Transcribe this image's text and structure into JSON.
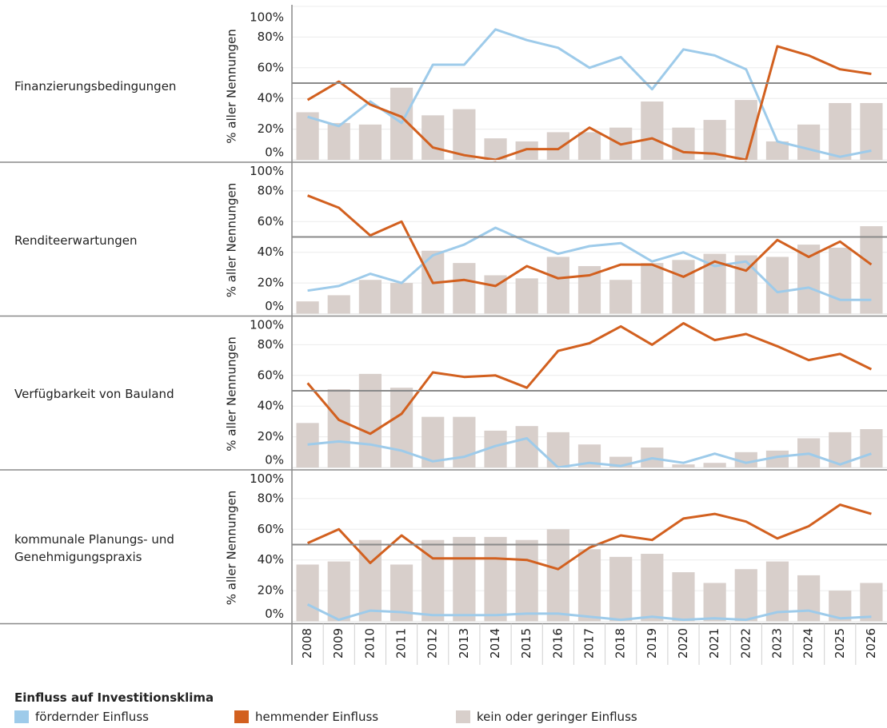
{
  "legend_title": "Einfluss auf Investitionsklima",
  "chart_data": [
    {
      "type": "line",
      "title": "Finanzierungsbedingungen",
      "ylabel": "% aller Nennungen",
      "ylim": [
        0,
        100
      ],
      "yticks": [
        {
          "value": 0,
          "label": "0%"
        },
        {
          "value": 20,
          "label": "20%"
        },
        {
          "value": 40,
          "label": "40%"
        },
        {
          "value": 60,
          "label": "60%"
        },
        {
          "value": 80,
          "label": "80%"
        },
        {
          "value": 100,
          "label": "100%"
        }
      ],
      "reference_line": 50,
      "grid": true,
      "series": [
        {
          "name": "fördernder Einfluss",
          "type": "line",
          "color": "#9ecbea",
          "values": [
            28,
            22,
            38,
            24,
            62,
            62,
            85,
            78,
            73,
            60,
            67,
            46,
            72,
            68,
            59,
            12,
            7,
            2,
            6
          ]
        },
        {
          "name": "hemmender Einfluss",
          "type": "line",
          "color": "#d2601f",
          "values": [
            39,
            51,
            36,
            28,
            8,
            3,
            0,
            7,
            7,
            21,
            10,
            14,
            5,
            4,
            0,
            74,
            68,
            59,
            56
          ]
        },
        {
          "name": "kein oder geringer Einfluss",
          "type": "bar",
          "color": "#d8cfcb",
          "values": [
            31,
            24,
            23,
            47,
            29,
            33,
            14,
            12,
            18,
            18,
            21,
            38,
            21,
            26,
            39,
            12,
            23,
            37,
            37
          ]
        }
      ]
    },
    {
      "type": "line",
      "title": "Renditeerwartungen",
      "ylabel": "% aller Nennungen",
      "ylim": [
        0,
        100
      ],
      "yticks": [
        {
          "value": 0,
          "label": "0%"
        },
        {
          "value": 20,
          "label": "20%"
        },
        {
          "value": 40,
          "label": "40%"
        },
        {
          "value": 60,
          "label": "60%"
        },
        {
          "value": 80,
          "label": "80%"
        },
        {
          "value": 100,
          "label": "100%"
        }
      ],
      "reference_line": 50,
      "grid": true,
      "series": [
        {
          "name": "fördernder Einfluss",
          "type": "line",
          "color": "#9ecbea",
          "values": [
            15,
            18,
            26,
            20,
            38,
            45,
            56,
            47,
            39,
            44,
            46,
            34,
            40,
            31,
            34,
            14,
            17,
            9,
            9
          ]
        },
        {
          "name": "hemmender Einfluss",
          "type": "line",
          "color": "#d2601f",
          "values": [
            77,
            69,
            51,
            60,
            20,
            22,
            18,
            31,
            23,
            25,
            32,
            32,
            24,
            34,
            28,
            48,
            37,
            47,
            32
          ]
        },
        {
          "name": "kein oder geringer Einfluss",
          "type": "bar",
          "color": "#d8cfcb",
          "values": [
            8,
            12,
            22,
            20,
            41,
            33,
            25,
            23,
            37,
            31,
            22,
            33,
            35,
            39,
            38,
            37,
            45,
            43,
            57
          ]
        }
      ]
    },
    {
      "type": "line",
      "title": "Verfügbarkeit von Bauland",
      "ylabel": "% aller Nennungen",
      "ylim": [
        0,
        100
      ],
      "yticks": [
        {
          "value": 0,
          "label": "0%"
        },
        {
          "value": 20,
          "label": "20%"
        },
        {
          "value": 40,
          "label": "40%"
        },
        {
          "value": 60,
          "label": "60%"
        },
        {
          "value": 80,
          "label": "80%"
        },
        {
          "value": 100,
          "label": "100%"
        }
      ],
      "reference_line": 50,
      "grid": true,
      "series": [
        {
          "name": "fördernder Einfluss",
          "type": "line",
          "color": "#9ecbea",
          "values": [
            15,
            17,
            15,
            11,
            4,
            7,
            14,
            19,
            0,
            3,
            1,
            6,
            3,
            9,
            3,
            7,
            9,
            2,
            9
          ]
        },
        {
          "name": "hemmender Einfluss",
          "type": "line",
          "color": "#d2601f",
          "values": [
            55,
            31,
            22,
            35,
            62,
            59,
            60,
            52,
            76,
            81,
            92,
            80,
            94,
            83,
            87,
            79,
            70,
            74,
            64
          ]
        },
        {
          "name": "kein oder geringer Einfluss",
          "type": "bar",
          "color": "#d8cfcb",
          "values": [
            29,
            51,
            61,
            52,
            33,
            33,
            24,
            27,
            23,
            15,
            7,
            13,
            2,
            3,
            10,
            11,
            19,
            23,
            25
          ]
        }
      ]
    },
    {
      "type": "line",
      "title": "kommunale Planungs- und Genehmigungspraxis",
      "ylabel": "% aller Nennungen",
      "ylim": [
        0,
        100
      ],
      "yticks": [
        {
          "value": 0,
          "label": "0%"
        },
        {
          "value": 20,
          "label": "20%"
        },
        {
          "value": 40,
          "label": "40%"
        },
        {
          "value": 60,
          "label": "60%"
        },
        {
          "value": 80,
          "label": "80%"
        },
        {
          "value": 100,
          "label": "100%"
        }
      ],
      "reference_line": 50,
      "grid": true,
      "categories": [
        "2008",
        "2009",
        "2010",
        "2011",
        "2012",
        "2013",
        "2014",
        "2015",
        "2016",
        "2017",
        "2018",
        "2019",
        "2020",
        "2021",
        "2022",
        "2023",
        "2024",
        "2025",
        "2026"
      ],
      "series": [
        {
          "name": "fördernder Einfluss",
          "type": "line",
          "color": "#9ecbea",
          "values": [
            11,
            1,
            7,
            6,
            4,
            4,
            4,
            5,
            5,
            3,
            1,
            3,
            1,
            2,
            1,
            6,
            7,
            2,
            3
          ]
        },
        {
          "name": "hemmender Einfluss",
          "type": "line",
          "color": "#d2601f",
          "values": [
            51,
            60,
            38,
            56,
            41,
            41,
            41,
            40,
            34,
            48,
            56,
            53,
            67,
            70,
            65,
            54,
            62,
            76,
            70
          ]
        },
        {
          "name": "kein oder geringer Einfluss",
          "type": "bar",
          "color": "#d8cfcb",
          "values": [
            37,
            39,
            53,
            37,
            53,
            55,
            55,
            53,
            60,
            47,
            42,
            44,
            32,
            25,
            34,
            39,
            30,
            20,
            25
          ]
        }
      ]
    }
  ]
}
